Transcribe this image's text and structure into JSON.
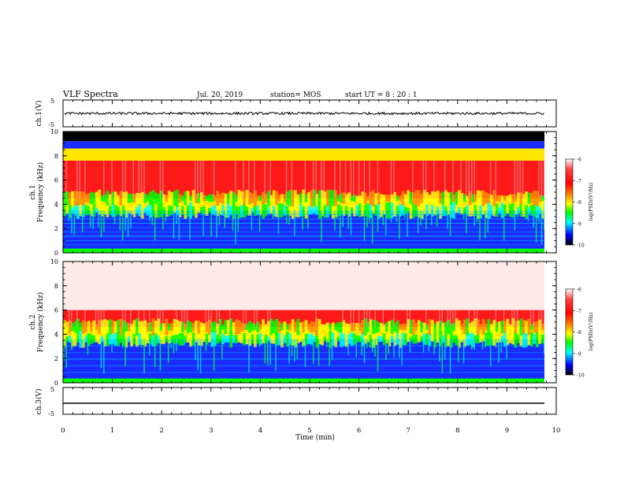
{
  "header": {
    "title": "VLF Spectra",
    "date": "Jul. 20, 2019",
    "station": "station= MOS",
    "start": "start UT =  8 : 20 : 1"
  },
  "colorbar": {
    "label": "log(PSD)(V²/Hz)",
    "ticks": [
      "-6",
      "-7",
      "-8",
      "-9",
      "-10"
    ],
    "colors": [
      "#ffffff",
      "#ff0000",
      "#ff8c00",
      "#ffff00",
      "#00ff00",
      "#00ffff",
      "#0000ff",
      "#000000"
    ]
  },
  "chart_data": [
    {
      "type": "line",
      "name": "ch1-waveform",
      "ylabel": "ch.1(V)",
      "ylim": [
        -5,
        5
      ],
      "yticks": [
        "5",
        "-5"
      ],
      "xlim": [
        0,
        10
      ],
      "series": [
        {
          "values_approx": 0.0
        }
      ]
    },
    {
      "type": "heatmap",
      "name": "ch1-spectrogram",
      "ylabel": "ch.1 Frequency (kHz)",
      "yticks": [
        "0",
        "2",
        "4",
        "6",
        "8",
        "10"
      ],
      "ylim": [
        0,
        10
      ],
      "xlim": [
        0,
        9.8
      ],
      "zlim": [
        -10,
        -6
      ],
      "zlabel": "log(PSD)(V²/Hz)",
      "bands_khz": [
        {
          "from": 0,
          "to": 3.5,
          "level": -9
        },
        {
          "from": 3.5,
          "to": 4.5,
          "level": -8
        },
        {
          "from": 4.5,
          "to": 7.6,
          "level": -7
        },
        {
          "from": 7.6,
          "to": 8.6,
          "level": -8
        },
        {
          "from": 8.6,
          "to": 9.2,
          "level": -9
        },
        {
          "from": 9.2,
          "to": 10,
          "level": -10
        }
      ]
    },
    {
      "type": "heatmap",
      "name": "ch2-spectrogram",
      "ylabel": "ch.2 Frequency (kHz)",
      "yticks": [
        "0",
        "2",
        "4",
        "6",
        "8",
        "10"
      ],
      "ylim": [
        0,
        10
      ],
      "xlim": [
        0,
        9.8
      ],
      "zlim": [
        -10,
        -6
      ],
      "zlabel": "log(PSD)(V²/Hz)",
      "bands_khz": [
        {
          "from": 0,
          "to": 3.6,
          "level": -9
        },
        {
          "from": 3.6,
          "to": 4.6,
          "level": -8
        },
        {
          "from": 4.6,
          "to": 6.0,
          "level": -7
        },
        {
          "from": 6.0,
          "to": 10,
          "level": -6
        }
      ]
    },
    {
      "type": "line",
      "name": "ch3-waveform",
      "ylabel": "ch.3(V)",
      "ylim": [
        -5,
        5
      ],
      "yticks": [
        "5",
        "-5"
      ],
      "xlim": [
        0,
        10
      ],
      "series": [
        {
          "values_approx": -1.5
        }
      ]
    }
  ],
  "xaxis": {
    "label": "Time (min)",
    "ticks": [
      "0",
      "1",
      "2",
      "3",
      "4",
      "5",
      "6",
      "7",
      "8",
      "9",
      "10"
    ],
    "range": [
      0,
      10
    ]
  }
}
